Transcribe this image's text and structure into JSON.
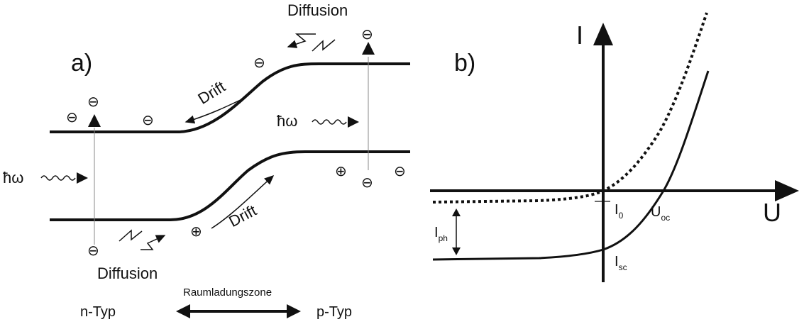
{
  "panel_a": {
    "label": "a)",
    "drift_top": "Drift",
    "drift_bottom": "Drift",
    "diffusion_top": "Diffusion",
    "diffusion_bottom": "Diffusion",
    "photon_left": "ħω",
    "photon_right": "ħω",
    "n_type": "n-Typ",
    "p_type": "p-Typ",
    "space_charge_zone": "Raumladungszone",
    "electron_symbol": "⊖",
    "hole_symbol": "⊕"
  },
  "panel_b": {
    "label": "b)",
    "y_axis": "I",
    "x_axis": "U",
    "i0_label": "I",
    "i0_sub": "0",
    "uoc_label": "U",
    "uoc_sub": "oc",
    "iph_label": "I",
    "iph_sub": "ph",
    "isc_label": "I",
    "isc_sub": "sc"
  }
}
